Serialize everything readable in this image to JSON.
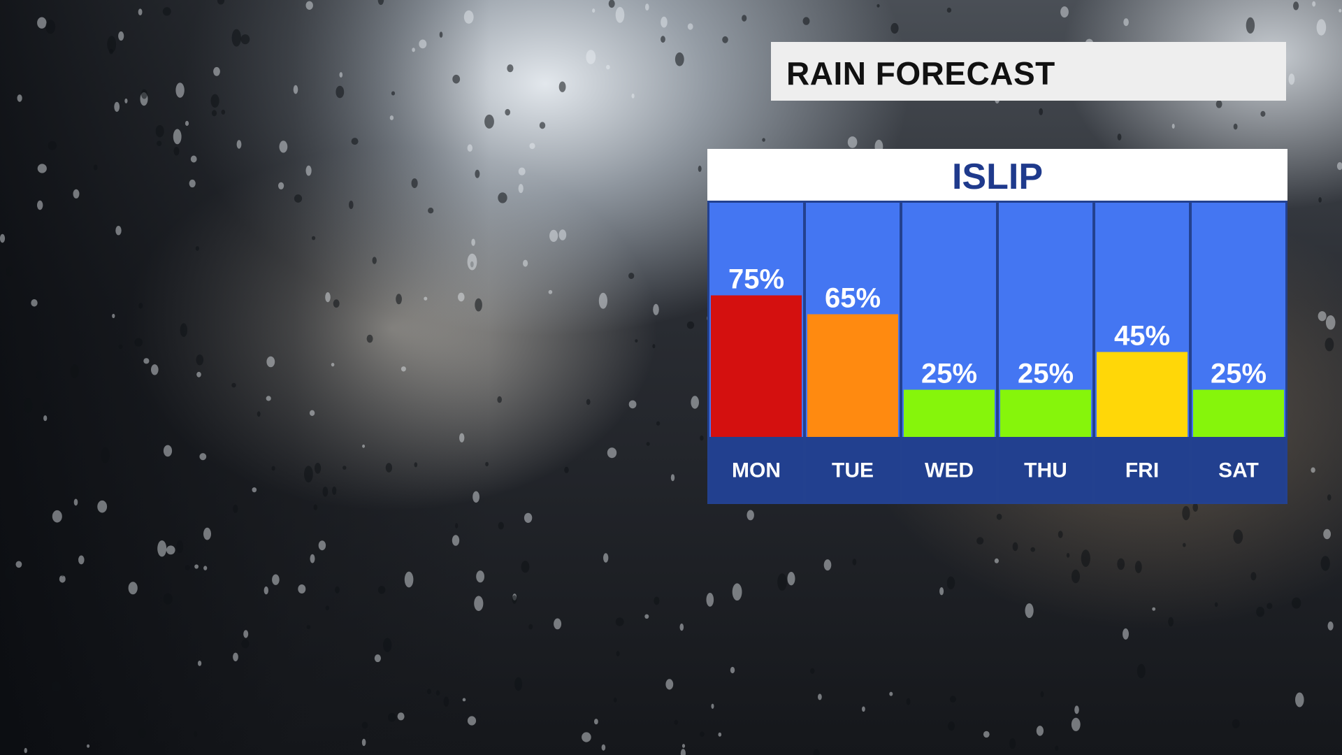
{
  "header": {
    "title": "RAIN FORECAST"
  },
  "location": "ISLIP",
  "colors": {
    "panel_border": "#23418f",
    "column_bg": "#4476f2",
    "label_band": "#22408f",
    "high": "#d4100f",
    "medium_high": "#ff8a10",
    "medium": "#ffd708",
    "low": "#86f50b"
  },
  "chart_data": {
    "type": "bar",
    "title": "RAIN FORECAST",
    "subtitle": "ISLIP",
    "categories": [
      "MON",
      "TUE",
      "WED",
      "THU",
      "FRI",
      "SAT"
    ],
    "values": [
      75,
      65,
      25,
      25,
      45,
      25
    ],
    "value_labels": [
      "75%",
      "65%",
      "25%",
      "25%",
      "45%",
      "25%"
    ],
    "bar_colors": [
      "#d4100f",
      "#ff8a10",
      "#86f50b",
      "#86f50b",
      "#ffd708",
      "#86f50b"
    ],
    "ylim": [
      0,
      100
    ],
    "grid": false,
    "legend": "none"
  }
}
